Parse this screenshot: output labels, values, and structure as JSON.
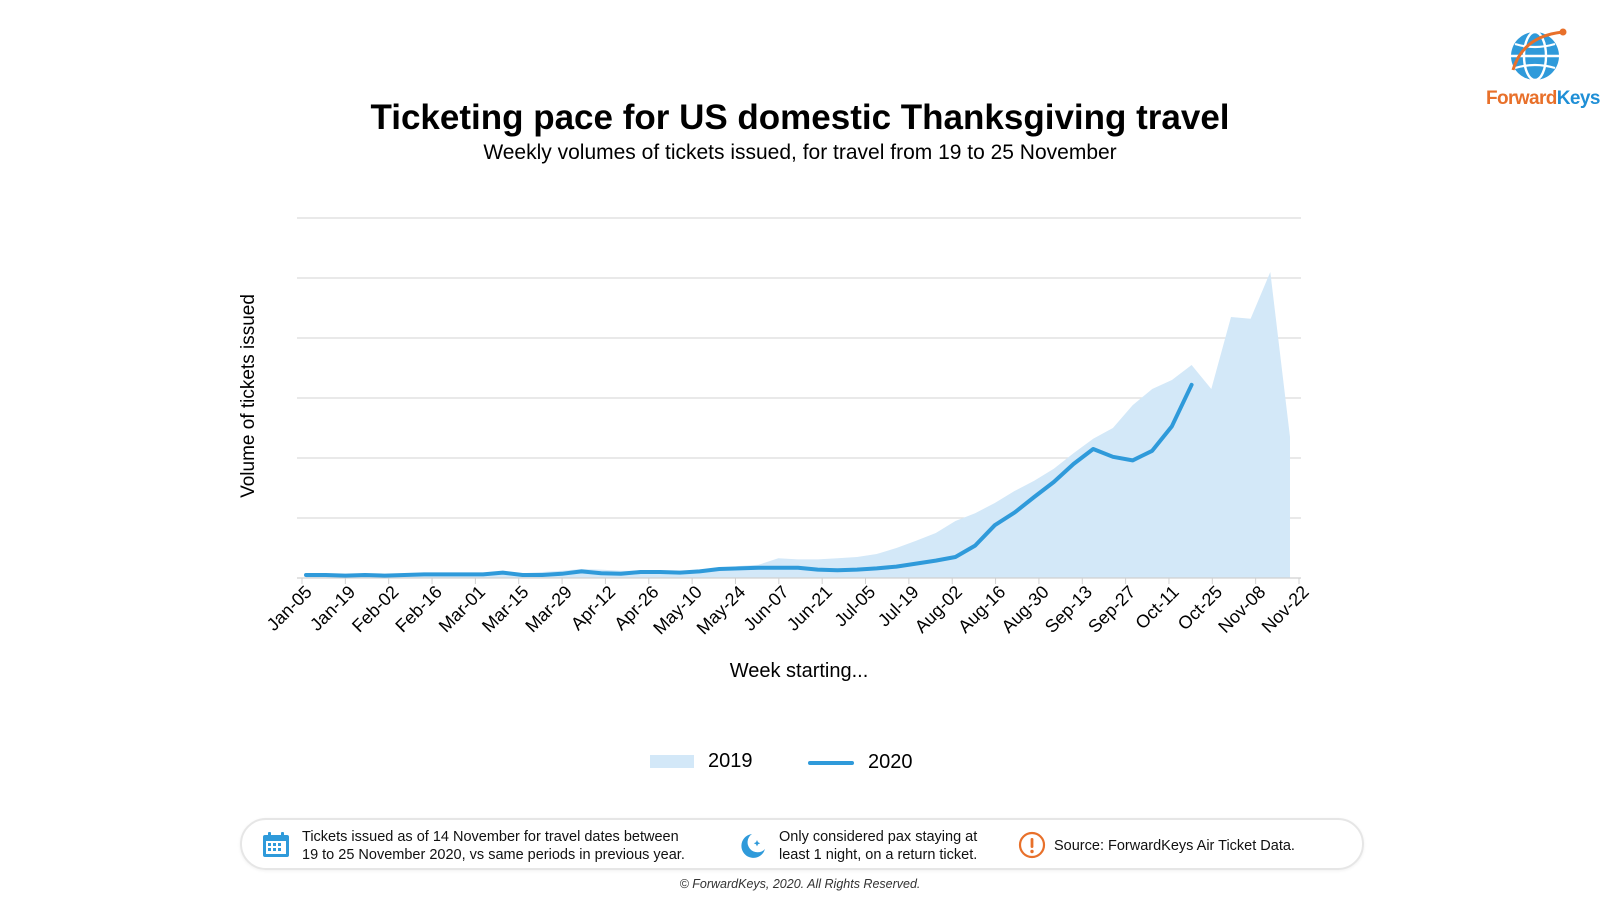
{
  "brand": {
    "logo_text_1": "Forward",
    "logo_text_2": "Keys"
  },
  "header": {
    "title": "Ticketing pace for US domestic Thanksgiving travel",
    "subtitle": "Weekly volumes of tickets issued, for travel from 19 to 25 November"
  },
  "chart_data": {
    "type": "area",
    "xlabel": "Week starting...",
    "ylabel": "Volume of tickets issued",
    "ylim": [
      0,
      6
    ],
    "y_ticks_labeled": false,
    "grid": true,
    "legend_position": "bottom",
    "tick_labels": [
      "Jan-05",
      "Jan-19",
      "Feb-02",
      "Feb-16",
      "Mar-01",
      "Mar-15",
      "Mar-29",
      "Apr-12",
      "Apr-26",
      "May-10",
      "May-24",
      "Jun-07",
      "Jun-21",
      "Jul-05",
      "Jul-19",
      "Aug-02",
      "Aug-16",
      "Aug-30",
      "Sep-13",
      "Sep-27",
      "Oct-11",
      "Oct-25",
      "Nov-08",
      "Nov-22"
    ],
    "series": [
      {
        "name": "2019",
        "type": "area",
        "color": "#d3e8f8",
        "values": [
          0.05,
          0.05,
          0.05,
          0.05,
          0.05,
          0.05,
          0.05,
          0.05,
          0.06,
          0.06,
          0.06,
          0.08,
          0.1,
          0.12,
          0.15,
          0.14,
          0.12,
          0.12,
          0.11,
          0.12,
          0.12,
          0.15,
          0.2,
          0.22,
          0.33,
          0.31,
          0.31,
          0.33,
          0.35,
          0.4,
          0.5,
          0.62,
          0.75,
          0.95,
          1.08,
          1.25,
          1.45,
          1.62,
          1.82,
          2.08,
          2.32,
          2.5,
          2.88,
          3.15,
          3.3,
          3.55,
          3.15,
          4.35,
          4.32,
          5.1,
          2.35
        ]
      },
      {
        "name": "2020",
        "type": "line",
        "color": "#2f9ada",
        "values": [
          0.05,
          0.05,
          0.04,
          0.05,
          0.04,
          0.05,
          0.06,
          0.06,
          0.06,
          0.06,
          0.09,
          0.05,
          0.05,
          0.07,
          0.11,
          0.08,
          0.07,
          0.1,
          0.1,
          0.09,
          0.11,
          0.15,
          0.16,
          0.17,
          0.17,
          0.17,
          0.14,
          0.13,
          0.14,
          0.16,
          0.19,
          0.24,
          0.29,
          0.35,
          0.54,
          0.88,
          1.09,
          1.35,
          1.6,
          1.9,
          2.15,
          2.02,
          1.96,
          2.12,
          2.53,
          3.22
        ]
      }
    ]
  },
  "notes": [
    {
      "icon": "calendar-icon",
      "lines": [
        "Tickets issued as of 14 November for travel dates between",
        "19 to 25 November 2020, vs same periods in previous year."
      ]
    },
    {
      "icon": "moon-stars-icon",
      "lines": [
        "Only considered pax staying at",
        "least 1 night, on a return ticket."
      ]
    },
    {
      "icon": "exclamation-icon",
      "lines": [
        "Source: ForwardKeys Air Ticket Data."
      ]
    }
  ],
  "footer": {
    "copyright": "© ForwardKeys, 2020. All Rights Reserved."
  }
}
